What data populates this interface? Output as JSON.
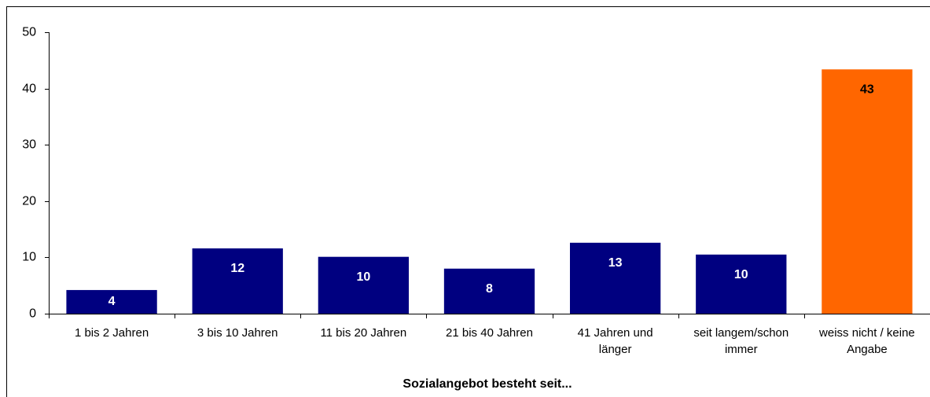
{
  "chart_data": {
    "type": "bar",
    "x_label": "Sozialangebot besteht seit...",
    "categories": [
      "1 bis 2 Jahren",
      "3 bis 10 Jahren",
      "11 bis 20 Jahren",
      "21 bis 40 Jahren",
      "41 Jahren und länger",
      "seit langem/schon immer",
      "weiss nicht / keine Angabe"
    ],
    "values": [
      4.2,
      11.6,
      10.1,
      8.0,
      12.6,
      10.5,
      43.4
    ],
    "value_labels": [
      "4",
      "12",
      "10",
      "8",
      "13",
      "10",
      "43"
    ],
    "colors": [
      "#000080",
      "#000080",
      "#000080",
      "#000080",
      "#000080",
      "#000080",
      "#ff6600"
    ],
    "label_colors": [
      "#ffffff",
      "#ffffff",
      "#ffffff",
      "#ffffff",
      "#ffffff",
      "#ffffff",
      "#000000"
    ],
    "ylim": [
      0,
      50
    ],
    "yticks": [
      0,
      10,
      20,
      30,
      40,
      50
    ],
    "grid": false
  }
}
